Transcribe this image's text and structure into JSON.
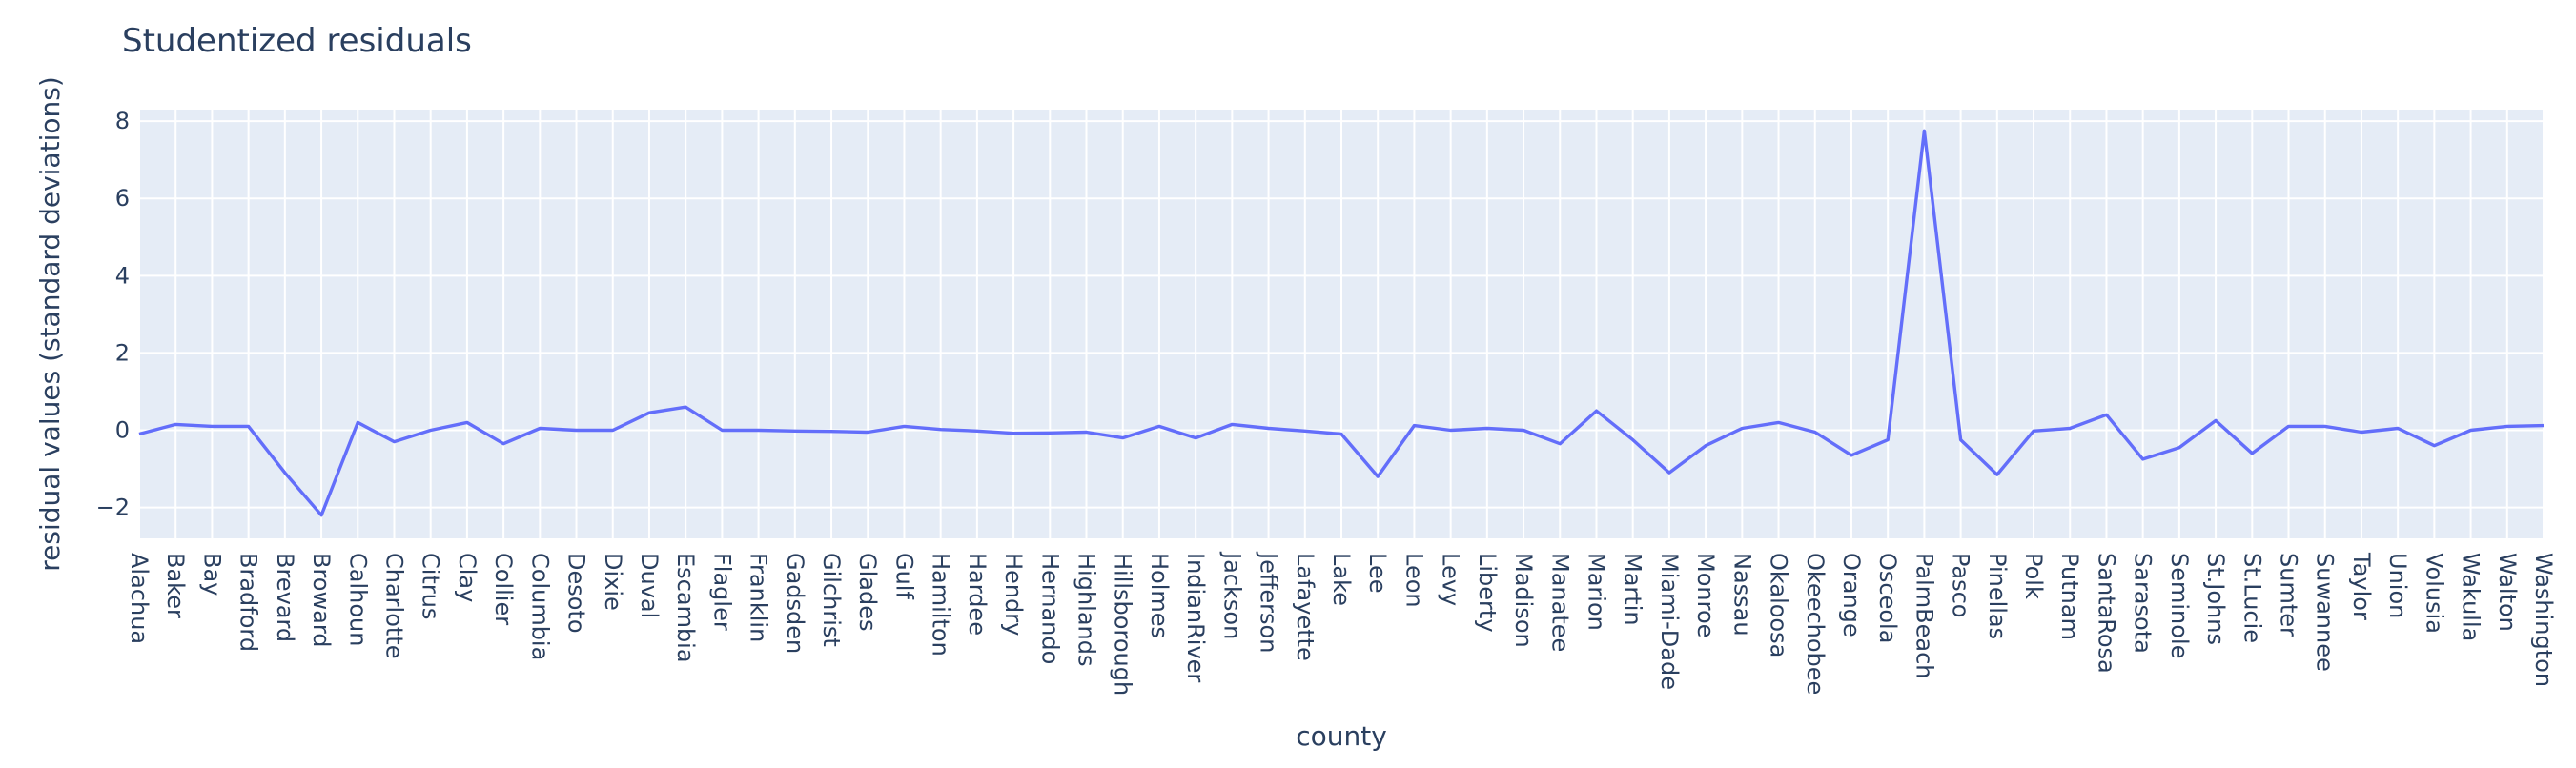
{
  "chart_data": {
    "type": "line",
    "title": "Studentized residuals",
    "xlabel": "county",
    "ylabel": "residual values (standard deviations)",
    "ylim": [
      -2.8,
      8.3
    ],
    "yticks": [
      -2,
      0,
      2,
      4,
      6,
      8
    ],
    "grid": true,
    "colors": {
      "line": "#636efa",
      "plot_bg": "#e5ecf6",
      "text": "#2a3f5f",
      "grid": "#ffffff"
    },
    "categories": [
      "Alachua",
      "Baker",
      "Bay",
      "Bradford",
      "Brevard",
      "Broward",
      "Calhoun",
      "Charlotte",
      "Citrus",
      "Clay",
      "Collier",
      "Columbia",
      "Desoto",
      "Dixie",
      "Duval",
      "Escambia",
      "Flagler",
      "Franklin",
      "Gadsden",
      "Gilchrist",
      "Glades",
      "Gulf",
      "Hamilton",
      "Hardee",
      "Hendry",
      "Hernando",
      "Highlands",
      "Hillsborough",
      "Holmes",
      "IndianRiver",
      "Jackson",
      "Jefferson",
      "Lafayette",
      "Lake",
      "Lee",
      "Leon",
      "Levy",
      "Liberty",
      "Madison",
      "Manatee",
      "Marion",
      "Martin",
      "Miami-Dade",
      "Monroe",
      "Nassau",
      "Okaloosa",
      "Okeechobee",
      "Orange",
      "Osceola",
      "PalmBeach",
      "Pasco",
      "Pinellas",
      "Polk",
      "Putnam",
      "SantaRosa",
      "Sarasota",
      "Seminole",
      "St.Johns",
      "St.Lucie",
      "Sumter",
      "Suwannee",
      "Taylor",
      "Union",
      "Volusia",
      "Wakulla",
      "Walton",
      "Washington"
    ],
    "values": [
      -0.1,
      0.15,
      0.1,
      0.1,
      -1.1,
      -2.2,
      0.2,
      -0.3,
      0.0,
      0.2,
      -0.35,
      0.05,
      0.0,
      0.0,
      0.45,
      0.6,
      0.0,
      0.0,
      -0.02,
      -0.03,
      -0.05,
      0.1,
      0.02,
      -0.02,
      -0.08,
      -0.07,
      -0.05,
      -0.2,
      0.1,
      -0.2,
      0.15,
      0.05,
      -0.02,
      -0.1,
      -1.2,
      0.12,
      0.0,
      0.05,
      0.0,
      -0.35,
      0.5,
      -0.25,
      -1.1,
      -0.4,
      0.05,
      0.2,
      -0.05,
      -0.65,
      -0.25,
      7.75,
      -0.25,
      -1.15,
      -0.02,
      0.05,
      0.4,
      -0.75,
      -0.45,
      0.25,
      -0.6,
      0.1,
      0.1,
      -0.05,
      0.05,
      -0.4,
      0.0,
      0.1,
      0.12
    ]
  }
}
